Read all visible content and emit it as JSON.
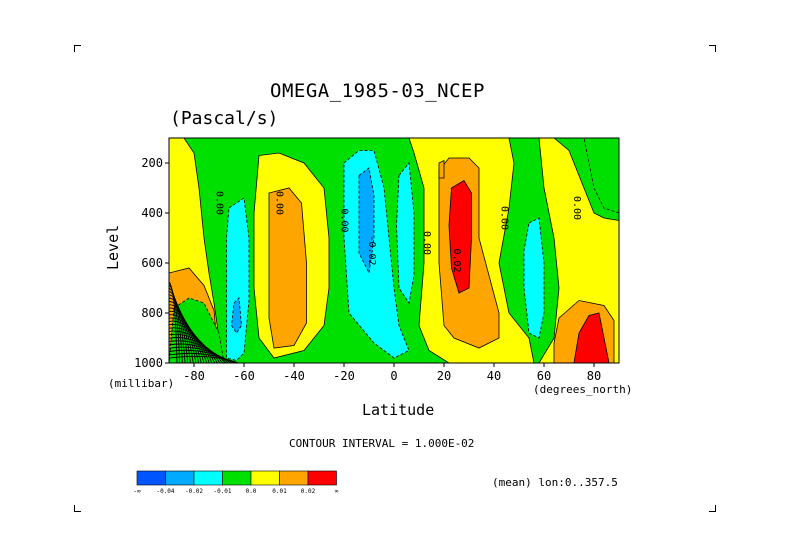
{
  "header": {
    "title": "OMEGA_1985-03_NCEP",
    "subtitle": "(Pascal/s)"
  },
  "axes": {
    "ylabel": "Level",
    "xlabel": "Latitude",
    "y_units": "(millibar)",
    "x_units": "(degrees_north)"
  },
  "footer": {
    "contour_interval": "CONTOUR INTERVAL = 1.000E-02",
    "mean_lon": "(mean) lon:0..357.5"
  },
  "colors": {
    "plot_background": "#00e000",
    "negative_strong": "#00aaff",
    "negative_weak": "#00ffff",
    "positive_weak": "#ffff00",
    "positive_mid": "#ffa500",
    "positive_strong": "#ff0000"
  },
  "chart_data": {
    "type": "heatmap",
    "variable": "OMEGA",
    "x_name": "Latitude",
    "y_name": "Level",
    "xlim": [
      -90,
      90
    ],
    "ylim": [
      1000,
      100
    ],
    "xticks": [
      -80,
      -60,
      -40,
      -20,
      0,
      20,
      40,
      60,
      80
    ],
    "yticks": [
      200,
      400,
      600,
      800,
      1000
    ],
    "colorbar": {
      "colors": [
        "#0055ff",
        "#00aaff",
        "#00ffff",
        "#00e000",
        "#ffff00",
        "#ffa500",
        "#ff0000"
      ],
      "labels": [
        "-∞",
        "-0.04",
        "-0.02",
        "-0.01",
        "0.0",
        "0.01",
        "0.02",
        "∞"
      ]
    },
    "contour_labels": [
      {
        "text": "0.00",
        "lat": -71,
        "lev": 360
      },
      {
        "text": "0.00",
        "lat": -47,
        "lev": 360
      },
      {
        "text": "0.00",
        "lat": -21,
        "lev": 430
      },
      {
        "text": "-0.02",
        "lat": -10,
        "lev": 550
      },
      {
        "text": "0.00",
        "lat": 12,
        "lev": 520
      },
      {
        "text": "0.02",
        "lat": 24,
        "lev": 590
      },
      {
        "text": "0.00",
        "lat": 43,
        "lev": 420
      },
      {
        "text": "0.00",
        "lat": 72,
        "lev": 380
      }
    ],
    "regions": [
      {
        "value": 0.005,
        "color": "#ffff00",
        "points": [
          [
            -90,
            100
          ],
          [
            -84,
            100
          ],
          [
            -80,
            160
          ],
          [
            -78,
            300
          ],
          [
            -76,
            500
          ],
          [
            -74,
            640
          ],
          [
            -72,
            760
          ],
          [
            -70,
            900
          ],
          [
            -70,
            1000
          ],
          [
            -90,
            1000
          ]
        ]
      },
      {
        "value": 0.005,
        "color": "#ffff00",
        "points": [
          [
            -54,
            170
          ],
          [
            -46,
            160
          ],
          [
            -36,
            200
          ],
          [
            -28,
            300
          ],
          [
            -26,
            500
          ],
          [
            -26,
            700
          ],
          [
            -28,
            850
          ],
          [
            -36,
            950
          ],
          [
            -48,
            980
          ],
          [
            -54,
            900
          ],
          [
            -56,
            700
          ],
          [
            -56,
            400
          ]
        ]
      },
      {
        "value": 0.015,
        "color": "#ffa500",
        "points": [
          [
            -50,
            320
          ],
          [
            -42,
            300
          ],
          [
            -37,
            360
          ],
          [
            -35,
            600
          ],
          [
            -35,
            840
          ],
          [
            -40,
            930
          ],
          [
            -48,
            940
          ],
          [
            -50,
            820
          ],
          [
            -50,
            500
          ]
        ]
      },
      {
        "value": 0.015,
        "color": "#ffa500",
        "points": [
          [
            -90,
            640
          ],
          [
            -82,
            620
          ],
          [
            -76,
            690
          ],
          [
            -72,
            790
          ],
          [
            -70,
            1000
          ],
          [
            -90,
            1000
          ]
        ]
      },
      {
        "value": -0.005,
        "color": "#00e000",
        "points": [
          [
            -88,
            780
          ],
          [
            -82,
            740
          ],
          [
            -76,
            760
          ],
          [
            -70,
            880
          ],
          [
            -68,
            1000
          ],
          [
            -90,
            1000
          ]
        ]
      },
      {
        "value": -0.015,
        "color": "#00ffff",
        "points": [
          [
            -66,
            380
          ],
          [
            -60,
            340
          ],
          [
            -58,
            500
          ],
          [
            -58,
            750
          ],
          [
            -60,
            960
          ],
          [
            -63,
            990
          ],
          [
            -67,
            980
          ],
          [
            -67,
            700
          ],
          [
            -67,
            500
          ]
        ]
      },
      {
        "value": -0.025,
        "color": "#00aaff",
        "points": [
          [
            -64,
            760
          ],
          [
            -62,
            740
          ],
          [
            -61,
            850
          ],
          [
            -63,
            880
          ],
          [
            -65,
            850
          ]
        ]
      },
      {
        "value": -0.015,
        "color": "#00ffff",
        "points": [
          [
            -20,
            200
          ],
          [
            -14,
            150
          ],
          [
            -8,
            150
          ],
          [
            -4,
            300
          ],
          [
            -2,
            500
          ],
          [
            0,
            700
          ],
          [
            2,
            850
          ],
          [
            6,
            950
          ],
          [
            0,
            980
          ],
          [
            -8,
            920
          ],
          [
            -18,
            800
          ],
          [
            -20,
            500
          ]
        ]
      },
      {
        "value": -0.025,
        "color": "#00aaff",
        "points": [
          [
            -14,
            250
          ],
          [
            -10,
            220
          ],
          [
            -8,
            330
          ],
          [
            -8,
            500
          ],
          [
            -10,
            640
          ],
          [
            -14,
            560
          ],
          [
            -14,
            400
          ]
        ]
      },
      {
        "value": -0.015,
        "color": "#00ffff",
        "points": [
          [
            2,
            250
          ],
          [
            6,
            200
          ],
          [
            8,
            400
          ],
          [
            8,
            650
          ],
          [
            6,
            760
          ],
          [
            2,
            700
          ],
          [
            1,
            450
          ]
        ]
      },
      {
        "value": 0.005,
        "color": "#ffff00",
        "points": [
          [
            6,
            100
          ],
          [
            46,
            100
          ],
          [
            48,
            200
          ],
          [
            46,
            380
          ],
          [
            42,
            600
          ],
          [
            46,
            800
          ],
          [
            54,
            900
          ],
          [
            56,
            1000
          ],
          [
            22,
            1000
          ],
          [
            14,
            950
          ],
          [
            10,
            850
          ],
          [
            12,
            600
          ],
          [
            12,
            300
          ],
          [
            8,
            160
          ]
        ]
      },
      {
        "value": 0.015,
        "color": "#ffa500",
        "points": [
          [
            18,
            230
          ],
          [
            22,
            180
          ],
          [
            30,
            180
          ],
          [
            34,
            220
          ],
          [
            34,
            500
          ],
          [
            38,
            650
          ],
          [
            42,
            800
          ],
          [
            42,
            900
          ],
          [
            34,
            940
          ],
          [
            24,
            900
          ],
          [
            20,
            850
          ],
          [
            18,
            600
          ],
          [
            18,
            400
          ]
        ]
      },
      {
        "value": 0.025,
        "color": "#ff0000",
        "points": [
          [
            23,
            300
          ],
          [
            28,
            270
          ],
          [
            31,
            320
          ],
          [
            31,
            500
          ],
          [
            30,
            700
          ],
          [
            26,
            720
          ],
          [
            23,
            620
          ],
          [
            22,
            450
          ]
        ]
      },
      {
        "value": 0.015,
        "color": "#ffa500",
        "points": [
          [
            18,
            200
          ],
          [
            20,
            190
          ],
          [
            20,
            260
          ],
          [
            18,
            260
          ]
        ]
      },
      {
        "value": -0.015,
        "color": "#00ffff",
        "points": [
          [
            54,
            440
          ],
          [
            58,
            420
          ],
          [
            60,
            600
          ],
          [
            60,
            800
          ],
          [
            58,
            900
          ],
          [
            54,
            880
          ],
          [
            52,
            700
          ],
          [
            52,
            550
          ]
        ]
      },
      {
        "value": 0.005,
        "color": "#ffff00",
        "points": [
          [
            58,
            100
          ],
          [
            64,
            100
          ],
          [
            70,
            150
          ],
          [
            74,
            250
          ],
          [
            80,
            400
          ],
          [
            84,
            420
          ],
          [
            90,
            430
          ],
          [
            90,
            1000
          ],
          [
            58,
            1000
          ],
          [
            64,
            900
          ],
          [
            66,
            700
          ],
          [
            64,
            500
          ],
          [
            60,
            300
          ]
        ]
      },
      {
        "value": 0.015,
        "color": "#ffa500",
        "points": [
          [
            66,
            820
          ],
          [
            74,
            750
          ],
          [
            84,
            770
          ],
          [
            88,
            830
          ],
          [
            88,
            1000
          ],
          [
            64,
            1000
          ],
          [
            64,
            920
          ]
        ]
      },
      {
        "value": 0.025,
        "color": "#ff0000",
        "points": [
          [
            74,
            880
          ],
          [
            78,
            810
          ],
          [
            82,
            800
          ],
          [
            84,
            900
          ],
          [
            86,
            1000
          ],
          [
            72,
            1000
          ]
        ]
      },
      {
        "value": -0.005,
        "color": "#00e000",
        "points": [
          [
            76,
            100
          ],
          [
            90,
            100
          ],
          [
            90,
            400
          ],
          [
            84,
            380
          ],
          [
            80,
            300
          ]
        ]
      }
    ],
    "dense_contours": {
      "note": "closely packed contour lines near 80S above 650mb",
      "lat_range": [
        -90,
        -62
      ],
      "lev_range": [
        660,
        1000
      ],
      "count": 24
    }
  }
}
